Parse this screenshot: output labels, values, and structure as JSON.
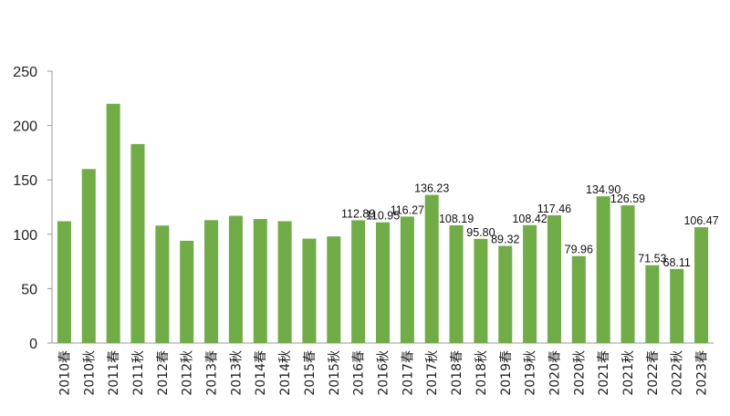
{
  "chart_data": {
    "type": "bar",
    "title": "",
    "xlabel": "",
    "ylabel": "",
    "ylim": [
      0,
      250
    ],
    "yticks": [
      0,
      50,
      100,
      150,
      200,
      250
    ],
    "grid": false,
    "legend": "none",
    "bar_color": "#70ad47",
    "categories": [
      "2010春",
      "2010秋",
      "2011春",
      "2011秋",
      "2012春",
      "2012秋",
      "2013春",
      "2013秋",
      "2014春",
      "2014秋",
      "2015春",
      "2015秋",
      "2016春",
      "2016秋",
      "2017春",
      "2017秋",
      "2018春",
      "2018秋",
      "2019春",
      "2019秋",
      "2020春",
      "2020秋",
      "2021春",
      "2021秋",
      "2022春",
      "2022秋",
      "2023春"
    ],
    "values": [
      112,
      160,
      220,
      183,
      108,
      94,
      113,
      117,
      114,
      112,
      96,
      98,
      112.89,
      110.95,
      116.27,
      136.23,
      108.19,
      95.8,
      89.32,
      108.42,
      117.46,
      79.96,
      134.9,
      126.59,
      71.53,
      68.11,
      106.47
    ],
    "data_labels": [
      null,
      null,
      null,
      null,
      null,
      null,
      null,
      null,
      null,
      null,
      null,
      null,
      "112.89",
      "110.95",
      "116.27",
      "136.23",
      "108.19",
      "95.80",
      "89.32",
      "108.42",
      "117.46",
      "79.96",
      "134.90",
      "126.59",
      "71.53",
      "68.11",
      "106.47"
    ]
  }
}
